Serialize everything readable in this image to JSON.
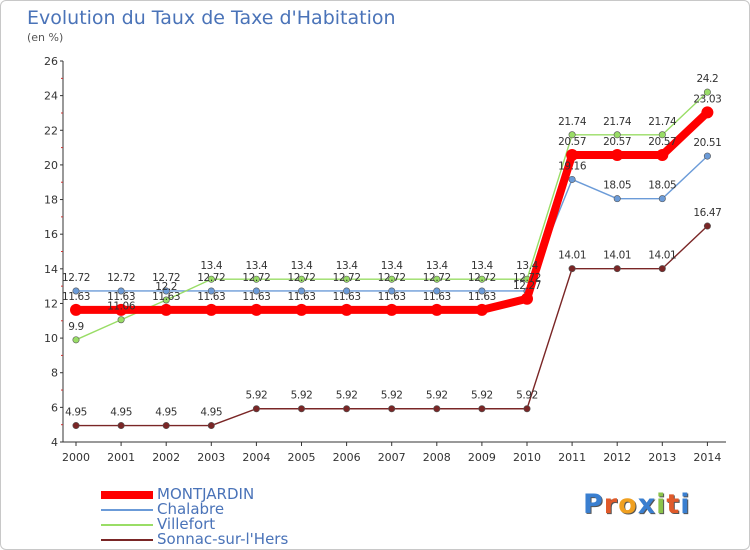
{
  "chart_data": {
    "type": "line",
    "title": "Evolution du Taux de Taxe d'Habitation",
    "subtitle": "(en %)",
    "xlabel": "",
    "ylabel": "",
    "x": [
      2000,
      2001,
      2002,
      2003,
      2004,
      2005,
      2006,
      2007,
      2008,
      2009,
      2010,
      2011,
      2012,
      2013,
      2014
    ],
    "ylim": [
      4,
      26
    ],
    "yticks": [
      4,
      6,
      8,
      10,
      12,
      14,
      16,
      18,
      20,
      22,
      24,
      26
    ],
    "grid": false,
    "legend_position": "bottom-left",
    "series": [
      {
        "name": "MONTJARDIN",
        "color": "#ff0000",
        "values": [
          11.63,
          11.63,
          11.63,
          11.63,
          11.63,
          11.63,
          11.63,
          11.63,
          11.63,
          11.63,
          12.27,
          20.57,
          20.57,
          20.57,
          23.03
        ],
        "labels": [
          "11.63",
          "11.63",
          "11.63",
          "11.63",
          "11.63",
          "11.63",
          "11.63",
          "11.63",
          "11.63",
          "11.63",
          "12.27",
          "20.57",
          "20.57",
          "20.57",
          "23.03"
        ]
      },
      {
        "name": "Chalabre",
        "color": "#6b9bd8",
        "values": [
          12.72,
          12.72,
          12.72,
          12.72,
          12.72,
          12.72,
          12.72,
          12.72,
          12.72,
          12.72,
          12.72,
          19.16,
          18.05,
          18.05,
          20.51
        ],
        "labels": [
          "12.72",
          "12.72",
          "12.72",
          "12.72",
          "12.72",
          "12.72",
          "12.72",
          "12.72",
          "12.72",
          "12.72",
          "12.72",
          "19.16",
          "18.05",
          "18.05",
          "20.51"
        ]
      },
      {
        "name": "Villefort",
        "color": "#99dd66",
        "values": [
          9.9,
          11.06,
          12.2,
          13.4,
          13.4,
          13.4,
          13.4,
          13.4,
          13.4,
          13.4,
          13.4,
          21.74,
          21.74,
          21.74,
          24.2
        ],
        "labels": [
          "9.9",
          "11.06",
          "12.2",
          "13.4",
          "13.4",
          "13.4",
          "13.4",
          "13.4",
          "13.4",
          "13.4",
          "13.4",
          "21.74",
          "21.74",
          "21.74",
          "24.2"
        ]
      },
      {
        "name": "Sonnac-sur-l'Hers",
        "color": "#7a2626",
        "values": [
          4.95,
          4.95,
          4.95,
          4.95,
          5.92,
          5.92,
          5.92,
          5.92,
          5.92,
          5.92,
          5.92,
          14.01,
          14.01,
          14.01,
          16.47
        ],
        "labels": [
          "4.95",
          "4.95",
          "4.95",
          "4.95",
          "5.92",
          "5.92",
          "5.92",
          "5.92",
          "5.92",
          "5.92",
          "5.92",
          "14.01",
          "14.01",
          "14.01",
          "16.47"
        ]
      }
    ]
  },
  "logo": {
    "letters": [
      "P",
      "r",
      "o",
      "x",
      "i",
      "t",
      "i"
    ],
    "colors": [
      "#3a7fd0",
      "#e05a2a",
      "#f0a020",
      "#3a7fd0",
      "#8bc34a",
      "#e05a2a",
      "#3a7fd0"
    ]
  }
}
